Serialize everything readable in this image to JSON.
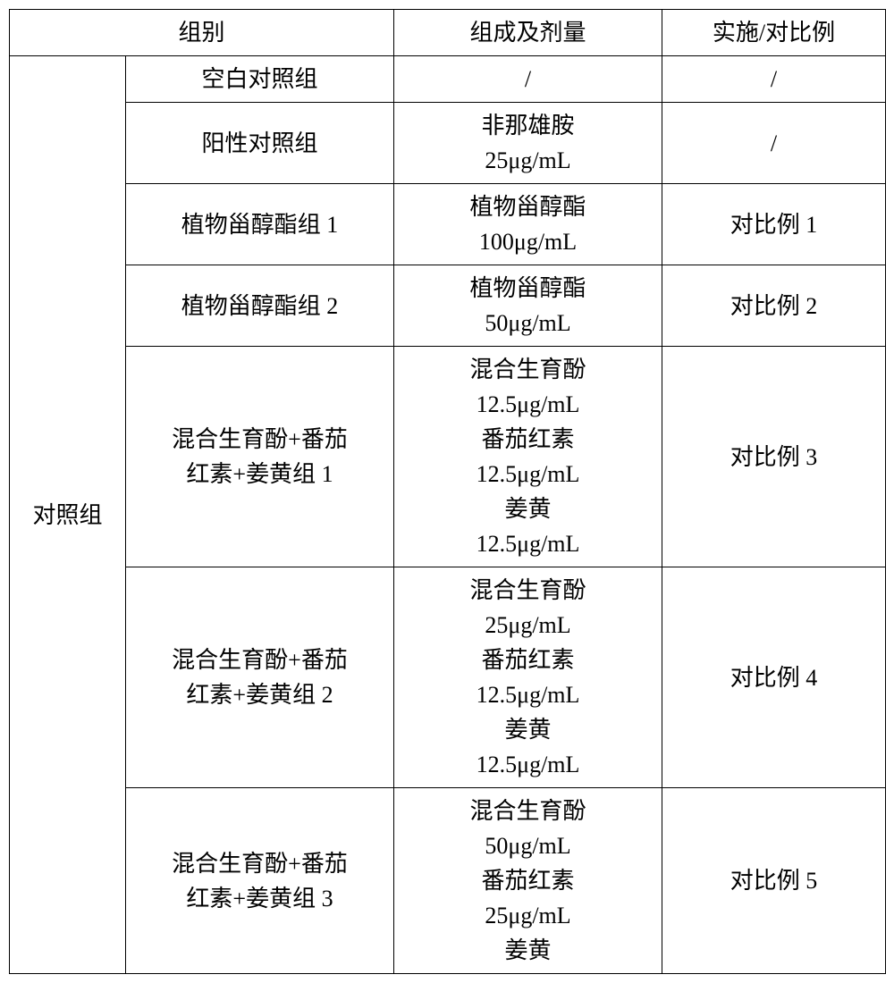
{
  "table": {
    "header": {
      "group": "组别",
      "composition": "组成及剂量",
      "example": "实施/对比例"
    },
    "control_group_label": "对照组",
    "rows": [
      {
        "name_lines": [
          "空白对照组"
        ],
        "comp_lines": [
          "/"
        ],
        "ex": "/"
      },
      {
        "name_lines": [
          "阳性对照组"
        ],
        "comp_lines": [
          "非那雄胺",
          "25μg/mL"
        ],
        "ex": "/"
      },
      {
        "name_lines": [
          "植物甾醇酯组 1"
        ],
        "comp_lines": [
          "植物甾醇酯",
          "100μg/mL"
        ],
        "ex": "对比例 1"
      },
      {
        "name_lines": [
          "植物甾醇酯组 2"
        ],
        "comp_lines": [
          "植物甾醇酯",
          "50μg/mL"
        ],
        "ex": "对比例 2"
      },
      {
        "name_lines": [
          "混合生育酚+番茄",
          "红素+姜黄组 1"
        ],
        "comp_lines": [
          "混合生育酚",
          "12.5μg/mL",
          "番茄红素",
          "12.5μg/mL",
          "姜黄",
          "12.5μg/mL"
        ],
        "ex": "对比例 3"
      },
      {
        "name_lines": [
          "混合生育酚+番茄",
          "红素+姜黄组 2"
        ],
        "comp_lines": [
          "混合生育酚",
          "25μg/mL",
          "番茄红素",
          "12.5μg/mL",
          "姜黄",
          "12.5μg/mL"
        ],
        "ex": "对比例 4"
      },
      {
        "name_lines": [
          "混合生育酚+番茄",
          "红素+姜黄组 3"
        ],
        "comp_lines": [
          "混合生育酚",
          "50μg/mL",
          "番茄红素",
          "25μg/mL",
          "姜黄"
        ],
        "ex": "对比例 5"
      }
    ],
    "colors": {
      "border": "#000000",
      "background": "#ffffff",
      "text": "#000000"
    },
    "font_size_pt": 20
  }
}
